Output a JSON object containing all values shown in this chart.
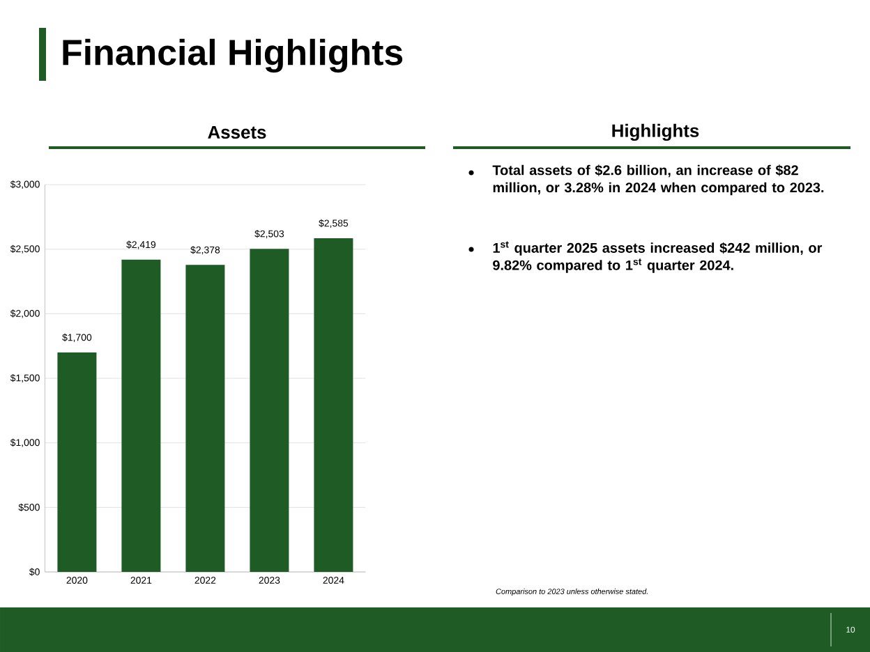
{
  "chart_data": [
    {
      "type": "bar",
      "title": "Financial Highlights",
      "subtitle": "Assets",
      "categories": [
        "2020",
        "2021",
        "2022",
        "2023",
        "2024"
      ],
      "values": [
        1700,
        2419,
        2378,
        2503,
        2585
      ],
      "value_labels": [
        "$1,700",
        "$2,419",
        "$2,378",
        "$2,503",
        "$2,585"
      ],
      "color": "#1f5c25",
      "ylim": [
        0,
        3000
      ],
      "yticks": [
        {
          "value": 0,
          "label": "$0"
        },
        {
          "value": 500,
          "label": "$500"
        },
        {
          "value": 1000,
          "label": "$1,000"
        },
        {
          "value": 1500,
          "label": "$1,500"
        },
        {
          "value": 2000,
          "label": "$2,000"
        },
        {
          "value": 2500,
          "label": "$2,500"
        },
        {
          "value": 3000,
          "label": "$3,000"
        }
      ],
      "grid": "y",
      "annotations": [
        "10"
      ]
    },
    {
      "type": "other",
      "title": "Highlights",
      "annotations": [
        "Total assets of $2.6 billion, an increase of $82 million, or 3.28% in 2024 when compared to 2023.",
        "1$^{st}$ quarter 2025 assets increased $242 million, or 9.82% compared to 1$^{st}$ quarter 2024.",
        "Comparison to 2023 unless otherwise stated."
      ]
    }
  ]
}
